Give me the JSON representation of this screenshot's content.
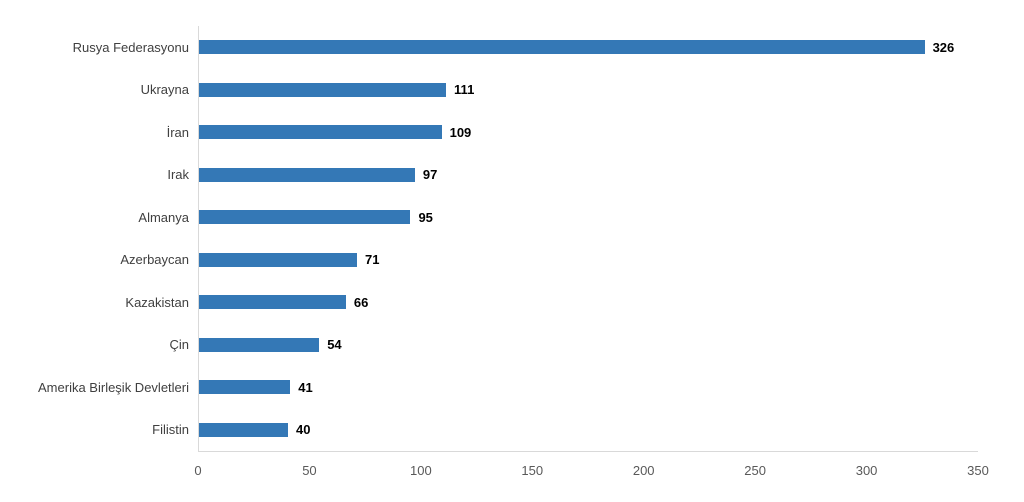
{
  "chart_data": {
    "type": "bar",
    "orientation": "horizontal",
    "title": "",
    "xlabel": "",
    "ylabel": "",
    "categories": [
      "Rusya Federasyonu",
      "Ukrayna",
      "İran",
      "Irak",
      "Almanya",
      "Azerbaycan",
      "Kazakistan",
      "Çin",
      "Amerika Birleşik Devletleri",
      "Filistin"
    ],
    "values": [
      326,
      111,
      109,
      97,
      95,
      71,
      66,
      54,
      41,
      40
    ],
    "xlim": [
      0,
      350
    ],
    "x_ticks": [
      0,
      50,
      100,
      150,
      200,
      250,
      300,
      350
    ],
    "grid": false,
    "legend": "none",
    "data_labels": true,
    "colors": {
      "bar": "#3478b6",
      "axis_line": "#d9d9d9",
      "category_label": "#404040",
      "value_label": "#000000",
      "tick_label": "#595959"
    }
  }
}
